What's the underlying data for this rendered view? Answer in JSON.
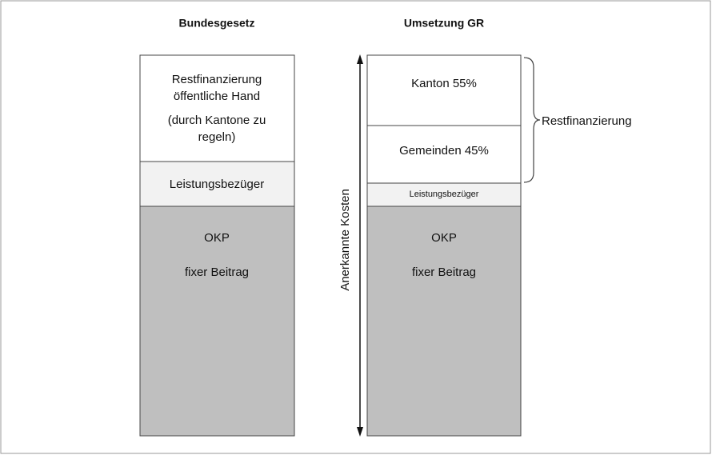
{
  "columns": [
    {
      "title": "Bundesgesetz",
      "blocks": [
        {
          "lines": [
            "Restfinanzierung",
            "öffentliche Hand",
            "(durch Kantone zu",
            "regeln)"
          ]
        },
        {
          "lines": [
            "Leistungsbezüger"
          ]
        },
        {
          "lines": [
            "OKP",
            "fixer Beitrag"
          ]
        }
      ]
    },
    {
      "title": "Umsetzung GR",
      "blocks": [
        {
          "lines": [
            "Kanton 55%"
          ]
        },
        {
          "lines": [
            "Gemeinden 45%"
          ]
        },
        {
          "lines": [
            "Leistungsbezüger"
          ]
        },
        {
          "lines": [
            "OKP",
            "fixer Beitrag"
          ]
        }
      ]
    }
  ],
  "axis_label": "Anerkannte Kosten",
  "brace_label": "Restfinanzierung"
}
